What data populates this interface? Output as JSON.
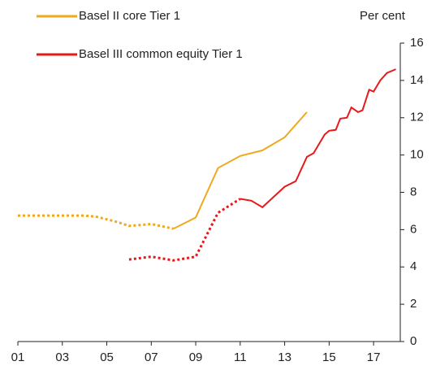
{
  "chart_data": {
    "type": "line",
    "y_label": "Per cent",
    "xlim": [
      2001,
      2018.2
    ],
    "xticks": [
      {
        "value": 2001,
        "label": "01"
      },
      {
        "value": 2003,
        "label": "03"
      },
      {
        "value": 2005,
        "label": "05"
      },
      {
        "value": 2007,
        "label": "07"
      },
      {
        "value": 2009,
        "label": "09"
      },
      {
        "value": 2011,
        "label": "11"
      },
      {
        "value": 2013,
        "label": "13"
      },
      {
        "value": 2015,
        "label": "15"
      },
      {
        "value": 2017,
        "label": "17"
      }
    ],
    "ylim": [
      0,
      16
    ],
    "yticks": [
      0,
      2,
      4,
      6,
      8,
      10,
      12,
      14,
      16
    ],
    "y_axis_side": "right",
    "series": [
      {
        "name": "Basel II core Tier 1",
        "color": "#f0a820",
        "dotted_until": 2008,
        "x": [
          2001,
          2002,
          2003,
          2004,
          2004.5,
          2005,
          2005.5,
          2006,
          2007,
          2008,
          2009,
          2010,
          2011,
          2012,
          2013,
          2014
        ],
        "values": [
          6.75,
          6.75,
          6.75,
          6.75,
          6.7,
          6.55,
          6.4,
          6.2,
          6.3,
          6.05,
          6.65,
          9.3,
          9.95,
          10.25,
          10.95,
          12.3
        ]
      },
      {
        "name": "Basel III common equity Tier 1",
        "color": "#e8191a",
        "dotted_until": 2011,
        "x": [
          2006,
          2007,
          2008,
          2009,
          2010,
          2011,
          2011.5,
          2012,
          2013,
          2013.5,
          2014,
          2014.3,
          2014.8,
          2015,
          2015.3,
          2015.5,
          2015.8,
          2016,
          2016.3,
          2016.5,
          2016.8,
          2017,
          2017.3,
          2017.6,
          2018
        ],
        "values": [
          4.4,
          4.55,
          4.35,
          4.55,
          6.9,
          7.65,
          7.55,
          7.2,
          8.3,
          8.6,
          9.9,
          10.1,
          11.1,
          11.3,
          11.35,
          11.95,
          12.0,
          12.55,
          12.3,
          12.4,
          13.5,
          13.4,
          14.0,
          14.4,
          14.6
        ]
      }
    ]
  }
}
